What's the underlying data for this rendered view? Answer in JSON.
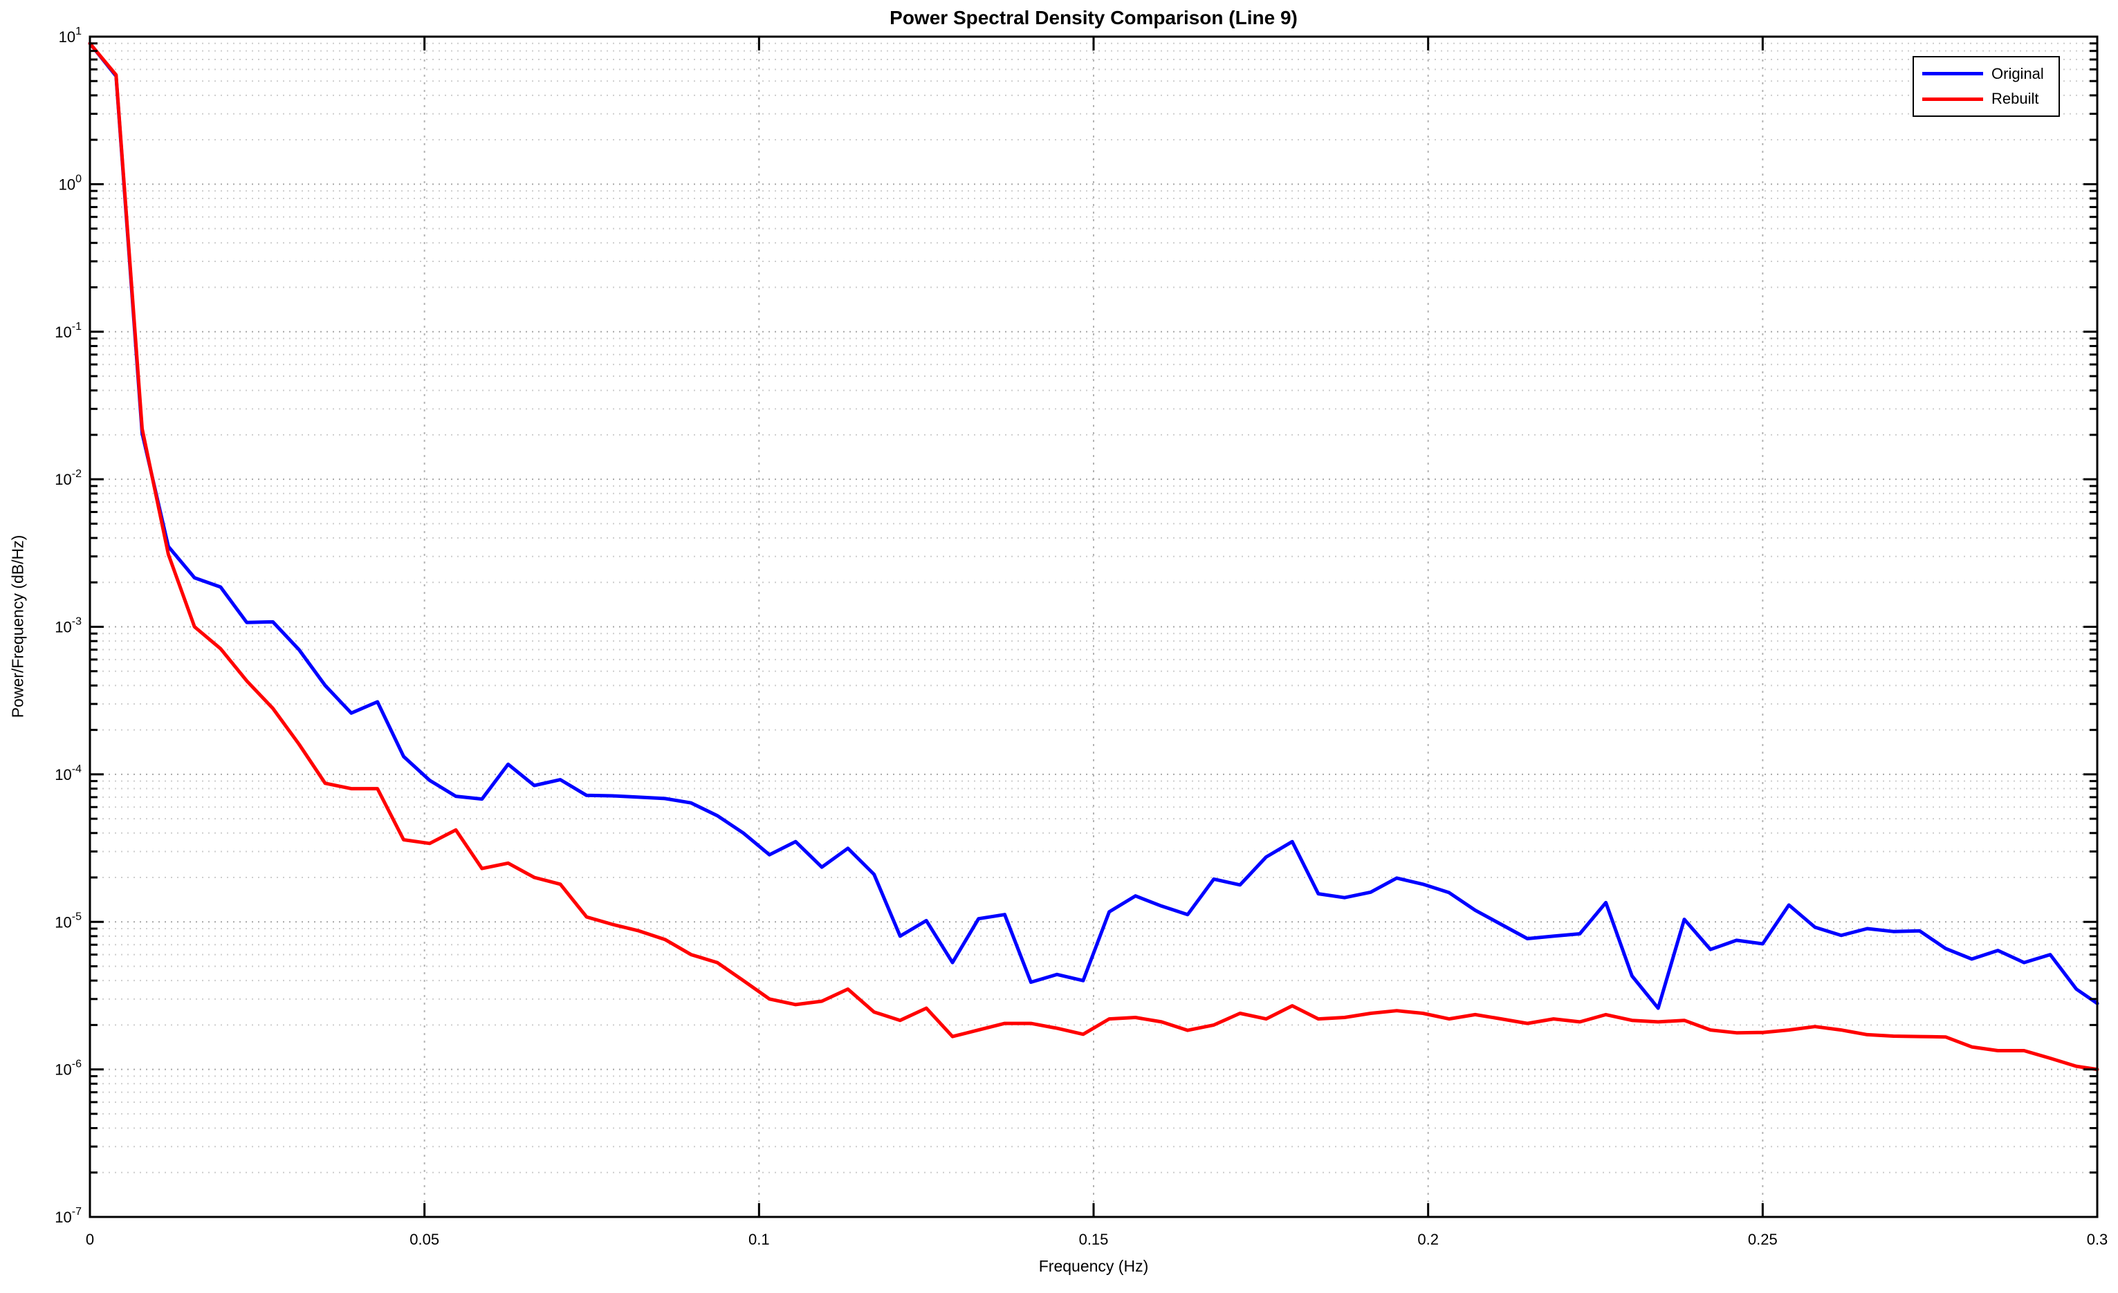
{
  "title": "Power Spectral Density Comparison (Line 9)",
  "xlabel": "Frequency (Hz)",
  "ylabel": "Power/Frequency (dB/Hz)",
  "legend": [
    {
      "label": "Original",
      "color": "#0000ff"
    },
    {
      "label": "Rebuilt",
      "color": "#ff0000"
    }
  ],
  "axes": {
    "xlim": [
      0,
      0.3
    ],
    "ylim_exponents": [
      -7,
      1
    ],
    "x_ticks": [
      0,
      0.05,
      0.1,
      0.15,
      0.2,
      0.25,
      0.3
    ],
    "x_tick_labels": [
      "0",
      "0.05",
      "0.1",
      "0.15",
      "0.2",
      "0.25",
      "0.3"
    ],
    "y_tick_exponents": [
      1,
      0,
      -1,
      -2,
      -3,
      -4,
      -5,
      -6,
      -7
    ],
    "grid": "on",
    "minor_grid": "on",
    "legend_position": "top-right"
  },
  "chart_data": {
    "type": "line",
    "x_unit": "Hz",
    "x": [
      0,
      0.00391,
      0.00781,
      0.01172,
      0.01563,
      0.01953,
      0.02344,
      0.02734,
      0.03125,
      0.03516,
      0.03906,
      0.04297,
      0.04688,
      0.05078,
      0.05469,
      0.05859,
      0.0625,
      0.06641,
      0.07031,
      0.07422,
      0.07813,
      0.08203,
      0.08594,
      0.08984,
      0.09375,
      0.09766,
      0.10156,
      0.10547,
      0.10938,
      0.11328,
      0.11719,
      0.12109,
      0.125,
      0.12891,
      0.13281,
      0.13672,
      0.14063,
      0.14453,
      0.14844,
      0.15234,
      0.15625,
      0.16016,
      0.16406,
      0.16797,
      0.17188,
      0.17578,
      0.17969,
      0.18359,
      0.1875,
      0.19141,
      0.19531,
      0.19922,
      0.20313,
      0.20703,
      0.21094,
      0.21484,
      0.21875,
      0.22266,
      0.22656,
      0.23047,
      0.23438,
      0.23828,
      0.24219,
      0.24609,
      0.25,
      0.25391,
      0.25781,
      0.26172,
      0.26563,
      0.26953,
      0.27344,
      0.27734,
      0.28125,
      0.28516,
      0.28906,
      0.29297,
      0.29688,
      0.3
    ],
    "series": [
      {
        "name": "Original",
        "color": "#0000ff",
        "values": [
          9.0,
          5.4,
          0.0205,
          0.0035,
          0.00215,
          0.00186,
          0.00107,
          0.00108,
          0.0007,
          0.0004,
          0.00026,
          0.00031,
          0.000132,
          9.1e-05,
          7.1e-05,
          6.8e-05,
          0.000117,
          8.4e-05,
          9.2e-05,
          7.2e-05,
          7.15e-05,
          7e-05,
          6.85e-05,
          6.4e-05,
          5.25e-05,
          4e-05,
          2.85e-05,
          3.5e-05,
          2.35e-05,
          3.15e-05,
          2.1e-05,
          8e-06,
          1.02e-05,
          5.3e-06,
          1.05e-05,
          1.12e-05,
          3.9e-06,
          4.4e-06,
          4e-06,
          1.17e-05,
          1.5e-05,
          1.28e-05,
          1.12e-05,
          1.95e-05,
          1.78e-05,
          2.75e-05,
          3.5e-05,
          1.55e-05,
          1.46e-05,
          1.59e-05,
          1.98e-05,
          1.8e-05,
          1.58e-05,
          1.2e-05,
          9.6e-06,
          7.7e-06,
          8e-06,
          8.3e-06,
          1.35e-05,
          4.3e-06,
          2.6e-06,
          1.04e-05,
          6.5e-06,
          7.5e-06,
          7.1e-06,
          1.3e-05,
          9.2e-06,
          8.1e-06,
          9e-06,
          8.6e-06,
          8.7e-06,
          6.6e-06,
          5.6e-06,
          6.4e-06,
          5.3e-06,
          6e-06,
          3.5e-06,
          2.8e-06
        ]
      },
      {
        "name": "Rebuilt",
        "color": "#ff0000",
        "values": [
          9.0,
          5.5,
          0.022,
          0.0031,
          0.001,
          0.00071,
          0.00043,
          0.00028,
          0.00016,
          8.7e-05,
          8e-05,
          8e-05,
          3.6e-05,
          3.4e-05,
          4.2e-05,
          2.3e-05,
          2.5e-05,
          2e-05,
          1.8e-05,
          1.08e-05,
          9.6e-06,
          8.7e-06,
          7.6e-06,
          6e-06,
          5.3e-06,
          4e-06,
          3e-06,
          2.75e-06,
          2.9e-06,
          3.5e-06,
          2.45e-06,
          2.15e-06,
          2.6e-06,
          1.67e-06,
          1.85e-06,
          2.05e-06,
          2.05e-06,
          1.9e-06,
          1.73e-06,
          2.2e-06,
          2.25e-06,
          2.1e-06,
          1.84e-06,
          2e-06,
          2.4e-06,
          2.2e-06,
          2.7e-06,
          2.2e-06,
          2.25e-06,
          2.4e-06,
          2.5e-06,
          2.4e-06,
          2.2e-06,
          2.35e-06,
          2.2e-06,
          2.05e-06,
          2.2e-06,
          2.1e-06,
          2.35e-06,
          2.15e-06,
          2.1e-06,
          2.15e-06,
          1.85e-06,
          1.77e-06,
          1.78e-06,
          1.85e-06,
          1.95e-06,
          1.85e-06,
          1.72e-06,
          1.68e-06,
          1.67e-06,
          1.66e-06,
          1.42e-06,
          1.34e-06,
          1.34e-06,
          1.19e-06,
          1.05e-06,
          1e-06
        ]
      }
    ],
    "title": "Power Spectral Density Comparison (Line 9)",
    "xlabel": "Frequency (Hz)",
    "ylabel": "Power/Frequency (dB/Hz)",
    "yscale": "log10",
    "ylim": [
      1e-07,
      10
    ],
    "legend_position": "top-right"
  }
}
